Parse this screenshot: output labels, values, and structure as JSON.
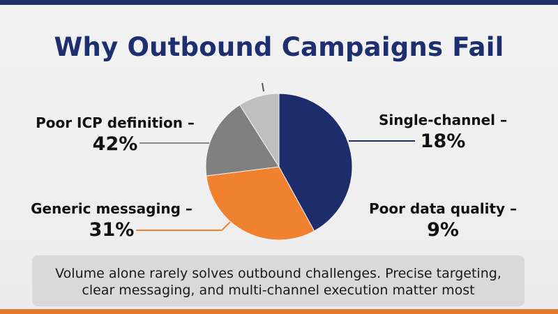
{
  "title": "Why Outbound Campaigns Fail",
  "caption": "Volume alone rarely solves outbound challenges. Precise targeting, clear messaging, and multi-channel execution matter most",
  "labels": {
    "icp": {
      "name": "Poor ICP definition –",
      "pct": "42%"
    },
    "generic": {
      "name": "Generic messaging –",
      "pct": "31%"
    },
    "single": {
      "name": "Single-channel –",
      "pct": "18%"
    },
    "data": {
      "name": "Poor data quality –",
      "pct": "9%"
    }
  },
  "colors": {
    "header_bar": "#1f2f6b",
    "footer_bar": "#e8792a",
    "title": "#1d2f6f"
  },
  "chart_data": {
    "type": "pie",
    "title": "Why Outbound Campaigns Fail",
    "slices": [
      {
        "label": "Poor ICP definition",
        "value": 42,
        "color": "#1d2c6b"
      },
      {
        "label": "Generic messaging",
        "value": 31,
        "color": "#f0812e"
      },
      {
        "label": "Single-channel",
        "value": 18,
        "color": "#808080"
      },
      {
        "label": "Poor data quality",
        "value": 9,
        "color": "#bfbfbf"
      }
    ],
    "start_angle_deg": 0,
    "direction": "clockwise",
    "legend": "callouts"
  }
}
